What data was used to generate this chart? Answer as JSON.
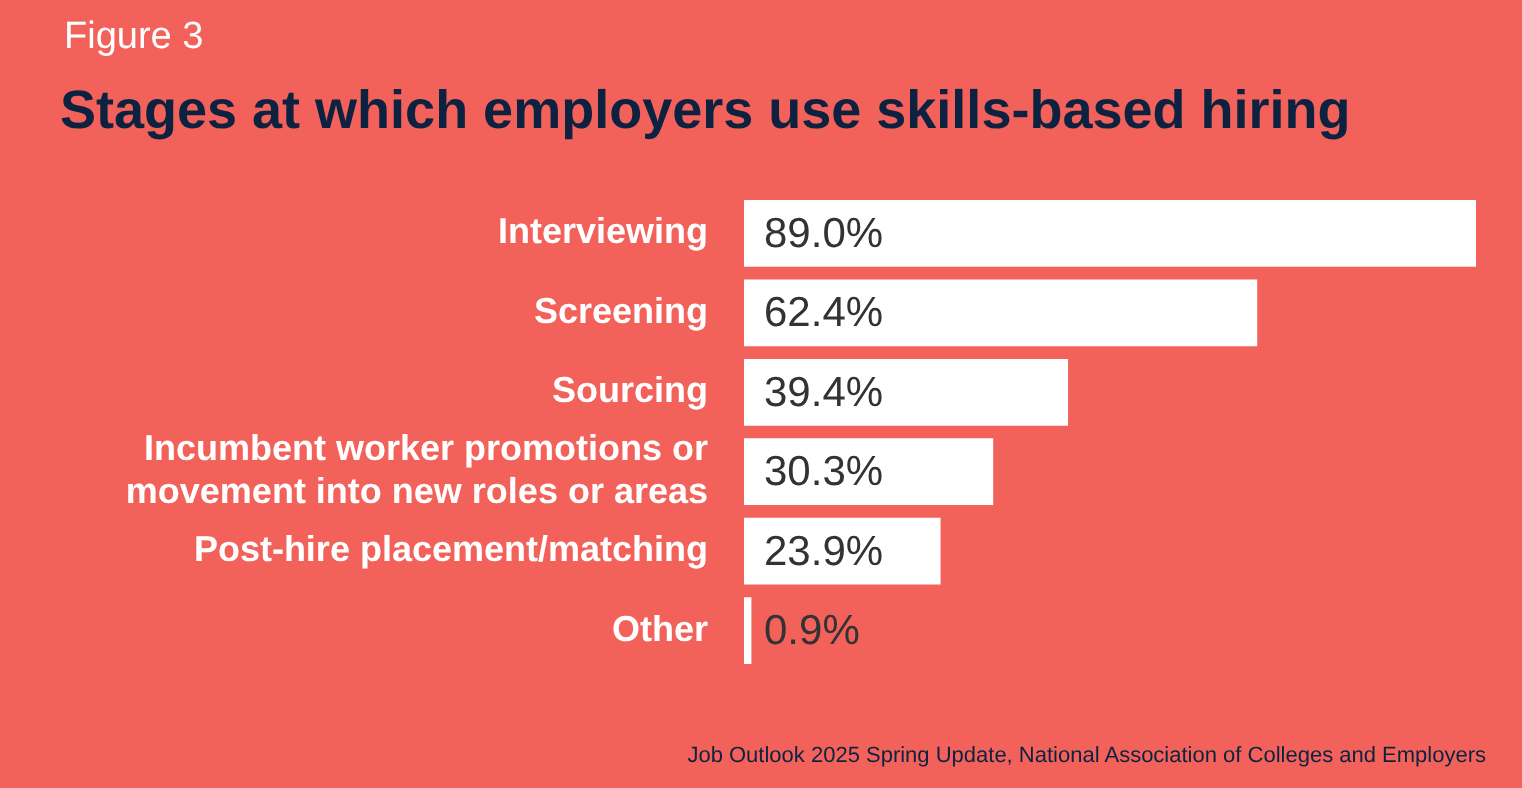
{
  "chart_data": {
    "type": "bar",
    "orientation": "horizontal",
    "title": "Stages at which employers use skills-based hiring",
    "categories": [
      "Interviewing",
      "Screening",
      "Sourcing",
      "Incumbent worker promotions or\nmovement into new roles or areas",
      "Post-hire placement/matching",
      "Other"
    ],
    "values": [
      89.0,
      62.4,
      39.4,
      30.3,
      23.9,
      0.9
    ],
    "value_labels": [
      "89.0%",
      "62.4%",
      "39.4%",
      "30.3%",
      "23.9%",
      "0.9%"
    ],
    "color": "#ffffff",
    "legend": false,
    "annotations": [
      "Figure 3",
      "Job Outlook 2025 Spring Update, National Association of Colleges and Employers"
    ]
  }
}
